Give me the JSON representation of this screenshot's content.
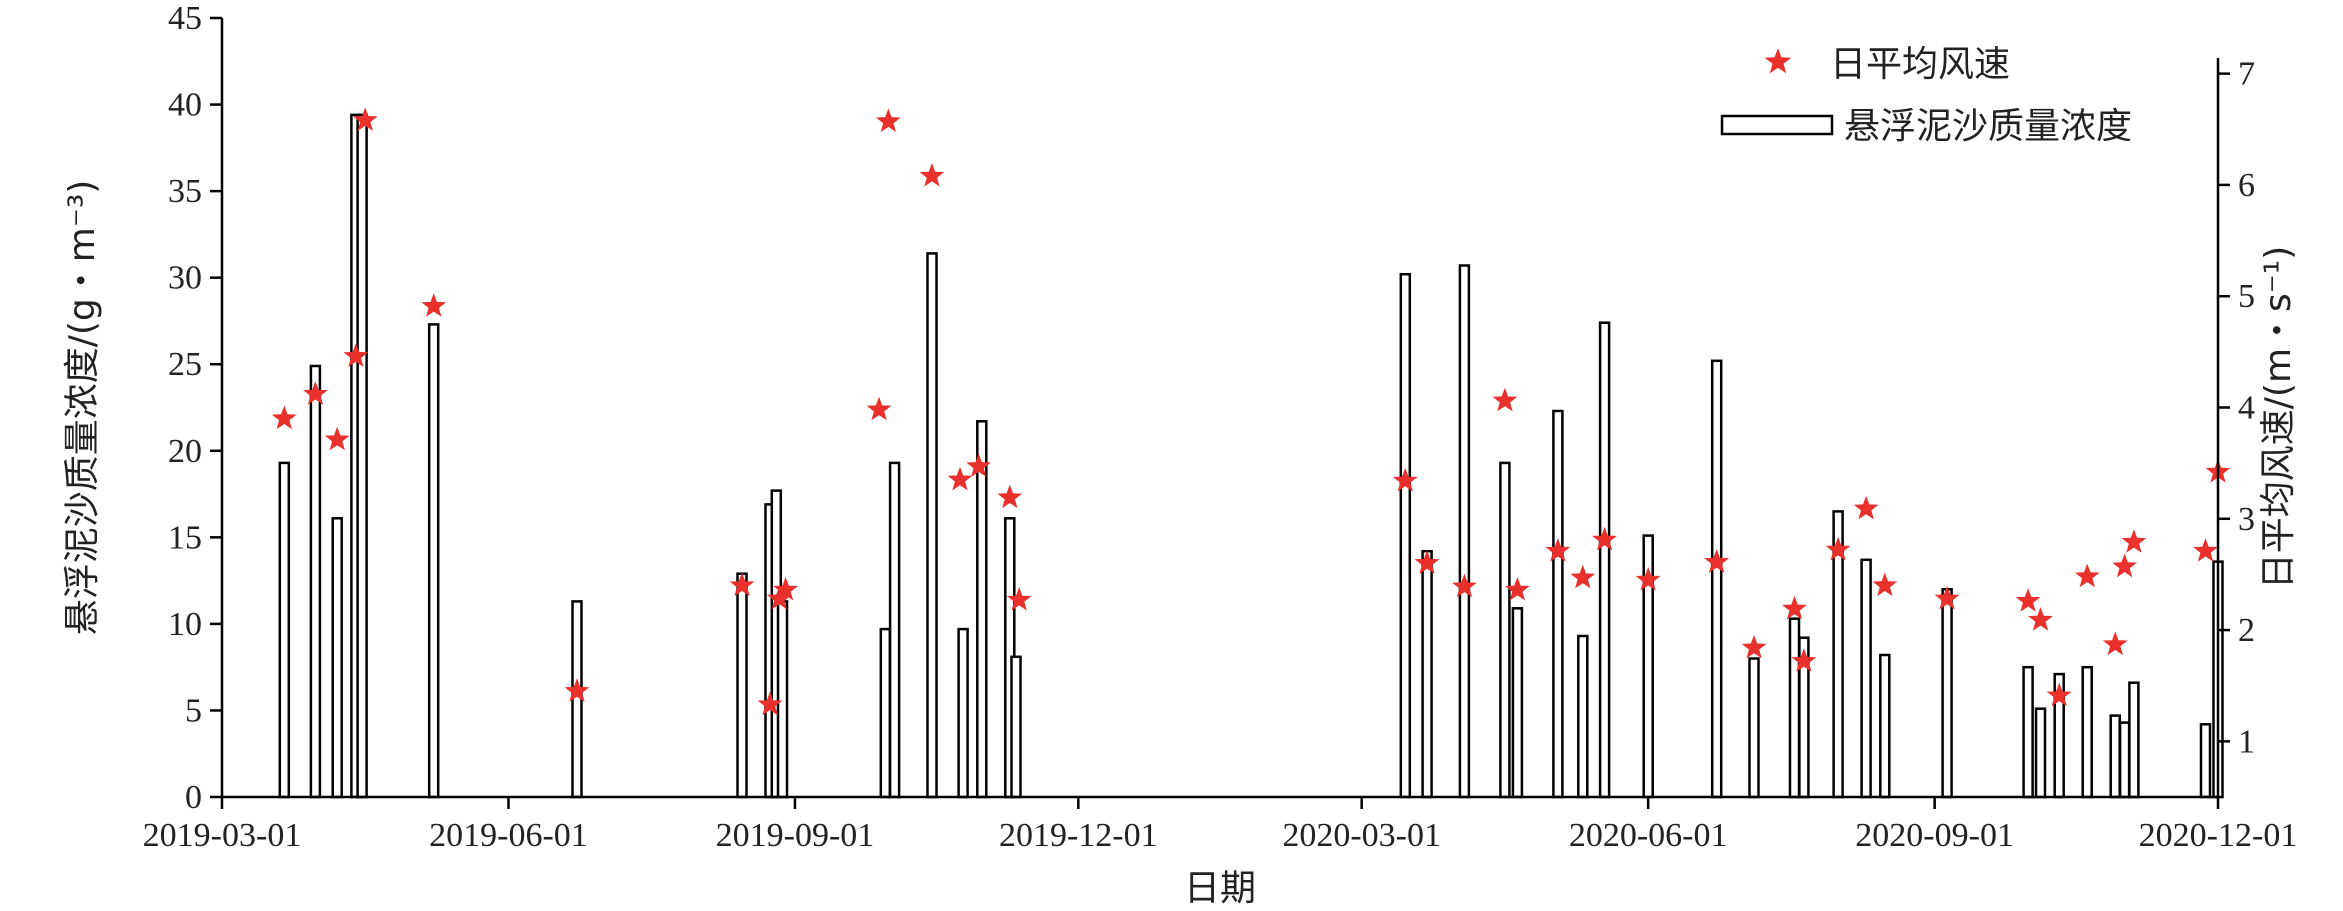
{
  "chart_data": {
    "type": "bar",
    "xlabel": "日期",
    "ylabel_left": "悬浮泥沙质量浓度/(g・m⁻³)",
    "ylabel_right": "日平均风速/(m・s⁻¹)",
    "ylim_left": [
      0,
      45
    ],
    "yticks_left": [
      0,
      5,
      10,
      15,
      20,
      25,
      30,
      35,
      40,
      45
    ],
    "ylim_right": [
      0.5,
      7.5
    ],
    "yticks_right": [
      1,
      2,
      3,
      4,
      5,
      6,
      7
    ],
    "xlim": [
      "2019-03-01",
      "2020-12-01"
    ],
    "xticks": [
      "2019-03-01",
      "2019-06-01",
      "2019-09-01",
      "2019-12-01",
      "2020-03-01",
      "2020-06-01",
      "2020-09-01",
      "2020-12-01"
    ],
    "legend_position": "top-right",
    "grid": false,
    "series": [
      {
        "name": "悬浮泥沙质量浓度",
        "kind": "bar",
        "axis": "left",
        "color": "#000000",
        "x": [
          "2019-03-21",
          "2019-03-31",
          "2019-04-07",
          "2019-04-13",
          "2019-04-15",
          "2019-05-08",
          "2019-06-23",
          "2019-08-15",
          "2019-08-24",
          "2019-08-26",
          "2019-08-28",
          "2019-09-30",
          "2019-10-03",
          "2019-10-15",
          "2019-10-25",
          "2019-10-31",
          "2019-11-09",
          "2019-11-11",
          "2020-03-15",
          "2020-03-22",
          "2020-04-03",
          "2020-04-16",
          "2020-04-20",
          "2020-05-03",
          "2020-05-11",
          "2020-05-18",
          "2020-06-01",
          "2020-06-23",
          "2020-07-05",
          "2020-07-18",
          "2020-07-21",
          "2020-08-01",
          "2020-08-10",
          "2020-08-16",
          "2020-09-05",
          "2020-10-01",
          "2020-10-05",
          "2020-10-11",
          "2020-10-20",
          "2020-10-29",
          "2020-11-01",
          "2020-11-04",
          "2020-11-27",
          "2020-12-01"
        ],
        "values": [
          19.3,
          24.9,
          16.1,
          39.4,
          39.4,
          27.3,
          11.3,
          12.9,
          16.9,
          17.7,
          11.3,
          9.7,
          19.3,
          31.4,
          9.7,
          21.7,
          16.1,
          8.1,
          30.2,
          14.2,
          30.7,
          19.3,
          10.9,
          22.3,
          9.3,
          27.4,
          15.1,
          25.2,
          8.0,
          10.3,
          9.2,
          16.5,
          13.7,
          8.2,
          12.0,
          7.5,
          5.1,
          7.1,
          7.5,
          4.7,
          4.3,
          6.6,
          4.2,
          13.6
        ]
      },
      {
        "name": "日平均风速",
        "kind": "scatter",
        "axis": "right",
        "color": "#e8302c",
        "x": [
          "2019-03-21",
          "2019-03-31",
          "2019-04-07",
          "2019-04-13",
          "2019-04-16",
          "2019-05-08",
          "2019-06-23",
          "2019-08-15",
          "2019-08-24",
          "2019-08-27",
          "2019-08-29",
          "2019-09-28",
          "2019-10-01",
          "2019-10-15",
          "2019-10-24",
          "2019-10-30",
          "2019-11-09",
          "2019-11-12",
          "2020-03-15",
          "2020-03-22",
          "2020-04-03",
          "2020-04-16",
          "2020-04-20",
          "2020-05-03",
          "2020-05-11",
          "2020-05-18",
          "2020-06-01",
          "2020-06-23",
          "2020-07-05",
          "2020-07-18",
          "2020-07-21",
          "2020-08-01",
          "2020-08-10",
          "2020-08-16",
          "2020-09-05",
          "2020-10-01",
          "2020-10-05",
          "2020-10-11",
          "2020-10-20",
          "2020-10-29",
          "2020-11-01",
          "2020-11-04",
          "2020-11-27",
          "2020-12-01"
        ],
        "values": [
          3.9,
          4.12,
          3.71,
          4.46,
          6.58,
          4.91,
          1.45,
          2.4,
          1.33,
          2.28,
          2.36,
          3.98,
          6.57,
          6.08,
          3.35,
          3.47,
          3.19,
          2.27,
          3.34,
          2.6,
          2.39,
          4.06,
          2.36,
          2.71,
          2.47,
          2.81,
          2.45,
          2.61,
          1.84,
          2.19,
          1.72,
          2.72,
          3.09,
          2.4,
          2.28,
          2.26,
          2.09,
          1.41,
          2.48,
          1.87,
          2.57,
          2.79,
          2.71,
          3.42
        ]
      }
    ]
  }
}
